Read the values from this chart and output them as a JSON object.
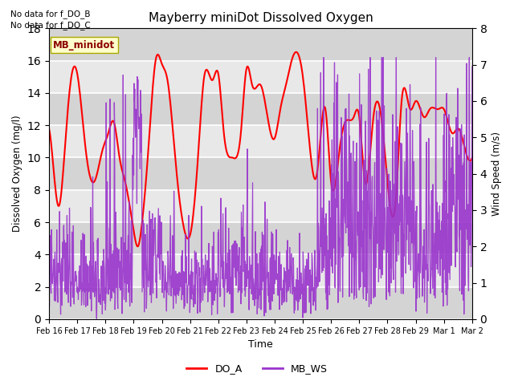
{
  "title": "Mayberry miniDot Dissolved Oxygen",
  "xlabel": "Time",
  "ylabel_left": "Dissolved Oxygen (mg/l)",
  "ylabel_right": "Wind Speed (m/s)",
  "ylim_left": [
    0,
    18
  ],
  "ylim_right": [
    0.0,
    8.0
  ],
  "yticks_left": [
    0,
    2,
    4,
    6,
    8,
    10,
    12,
    14,
    16,
    18
  ],
  "yticks_right": [
    0.0,
    1.0,
    2.0,
    3.0,
    4.0,
    5.0,
    6.0,
    7.0,
    8.0
  ],
  "no_data_text1": "No data for f_DO_B",
  "no_data_text2": "No data for f_DO_C",
  "legend_box_text": "MB_minidot",
  "legend_box_color": "#ffffcc",
  "legend_box_edge": "#aaa800",
  "do_color": "red",
  "ws_color": "#9933cc",
  "bg_color": "#e8e8e8",
  "band_color": "#d0d0d0",
  "grid_color": "white",
  "x_tick_labels": [
    "Feb 16",
    "Feb 17",
    "Feb 18",
    "Feb 19",
    "Feb 20",
    "Feb 21",
    "Feb 22",
    "Feb 23",
    "Feb 24",
    "Feb 25",
    "Feb 26",
    "Feb 27",
    "Feb 28",
    "Feb 29",
    "Mar 1",
    "Mar 2"
  ],
  "x_tick_positions": [
    0,
    1,
    2,
    3,
    4,
    5,
    6,
    7,
    8,
    9,
    10,
    11,
    12,
    13,
    14,
    15
  ]
}
